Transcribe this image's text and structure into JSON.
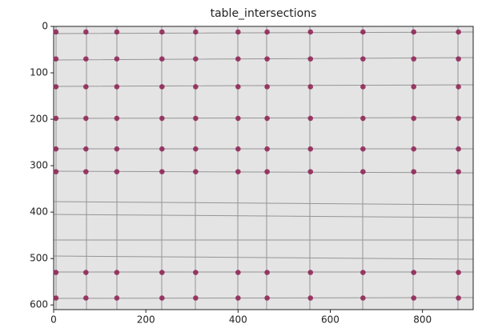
{
  "chart_data": {
    "type": "scatter",
    "title": "table_intersections",
    "x": [
      5,
      70,
      137,
      235,
      308,
      400,
      463,
      557,
      671,
      781,
      878,
      5,
      70,
      137,
      235,
      308,
      400,
      463,
      557,
      671,
      781,
      878,
      5,
      70,
      137,
      235,
      308,
      400,
      463,
      557,
      671,
      781,
      878,
      5,
      70,
      137,
      235,
      308,
      400,
      463,
      557,
      671,
      781,
      878,
      5,
      70,
      137,
      235,
      308,
      400,
      463,
      557,
      671,
      781,
      878,
      5,
      70,
      137,
      235,
      308,
      400,
      463,
      557,
      671,
      781,
      878,
      5,
      70,
      137,
      235,
      308,
      400,
      463,
      557,
      671,
      781,
      878,
      5,
      70,
      137,
      235,
      308,
      400,
      463,
      557,
      671,
      781,
      878
    ],
    "y": [
      12,
      12,
      12,
      12,
      12,
      12,
      12,
      12,
      12,
      12,
      12,
      70,
      70,
      70,
      70,
      70,
      70,
      70,
      70,
      70,
      70,
      70,
      130,
      130,
      130,
      130,
      130,
      130,
      130,
      130,
      130,
      130,
      130,
      198,
      198,
      198,
      198,
      198,
      198,
      198,
      198,
      198,
      198,
      198,
      264,
      264,
      264,
      264,
      264,
      264,
      264,
      264,
      264,
      264,
      264,
      313,
      313,
      313,
      313,
      313,
      313,
      313,
      313,
      313,
      313,
      313,
      530,
      530,
      530,
      530,
      530,
      530,
      530,
      530,
      530,
      530,
      530,
      585,
      585,
      585,
      585,
      585,
      585,
      585,
      585,
      585,
      585,
      585
    ],
    "color": "#8e1f52",
    "xlim": [
      0,
      910
    ],
    "ylim": [
      610,
      0
    ],
    "xticks": [
      0,
      200,
      400,
      600,
      800
    ],
    "yticks": [
      0,
      100,
      200,
      300,
      400,
      500,
      600
    ]
  }
}
